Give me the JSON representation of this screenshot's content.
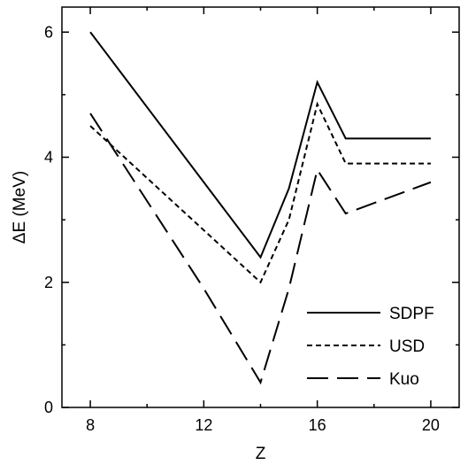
{
  "chart_data": {
    "type": "line",
    "xlabel": "Z",
    "ylabel": "ΔE (MeV)",
    "xlim": [
      7,
      21
    ],
    "ylim": [
      0,
      6.4
    ],
    "x_major_ticks": [
      8,
      12,
      16,
      20
    ],
    "x_minor_ticks": [
      10,
      14,
      18
    ],
    "y_major_ticks": [
      0,
      2,
      4,
      6
    ],
    "y_minor_ticks": [
      1,
      3,
      5
    ],
    "grid": false,
    "legend_position": "bottom-right",
    "series": [
      {
        "name": "SDPF",
        "style": "solid",
        "x": [
          8,
          14,
          15,
          16,
          17,
          20
        ],
        "y": [
          6.0,
          2.4,
          3.5,
          5.2,
          4.3,
          4.3
        ]
      },
      {
        "name": "USD",
        "style": "short-dash",
        "x": [
          8,
          14,
          15,
          16,
          17,
          20
        ],
        "y": [
          4.5,
          2.0,
          3.0,
          4.85,
          3.9,
          3.9
        ]
      },
      {
        "name": "Kuo",
        "style": "long-dash",
        "x": [
          8,
          12,
          14,
          15,
          16,
          17,
          20
        ],
        "y": [
          4.7,
          1.9,
          0.4,
          1.9,
          3.8,
          3.1,
          3.6
        ]
      }
    ]
  }
}
